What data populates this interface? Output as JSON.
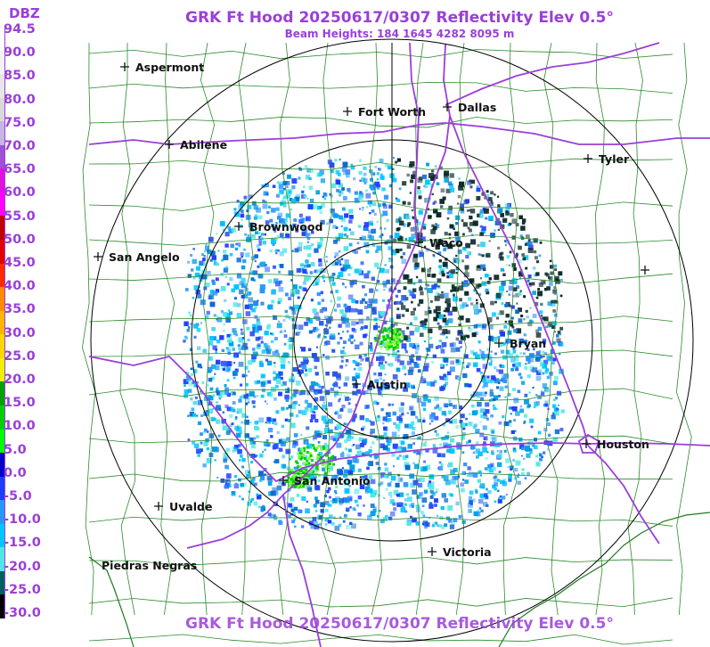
{
  "header": {
    "title": "GRK Ft Hood 20250617/0307 Reflectivity Elev 0.5°",
    "subtitle": "Beam Heights: 184 1645 4282 8095 m",
    "footer_title": "GRK Ft Hood 20250617/0307 Reflectivity Elev 0.5°"
  },
  "legend": {
    "unit": "DBZ",
    "labels": [
      "94.5",
      "90.0",
      "85.0",
      "80.0",
      "75.0",
      "70.0",
      "65.0",
      "60.0",
      "55.0",
      "50.0",
      "45.0",
      "40.0",
      "35.0",
      "30.0",
      "25.0",
      "20.0",
      "15.0",
      "10.0",
      "5.0",
      "0.0",
      "-5.0",
      "-10.0",
      "-15.0",
      "-20.0",
      "-25.0",
      "-30.0"
    ],
    "colors": [
      "#ffffff",
      "#f2f2f2",
      "#e6e6e6",
      "#d9d9d9",
      "#c8b4e6",
      "#a050d8",
      "#e010e0",
      "#ff00ff",
      "#c00000",
      "#e00000",
      "#ff2a00",
      "#ff8c00",
      "#ffb400",
      "#ffd700",
      "#f0f000",
      "#00a000",
      "#00d000",
      "#00ff00",
      "#0000c8",
      "#1e3cff",
      "#2896ff",
      "#00c8ff",
      "#50e6e6",
      "#006060",
      "#000000"
    ]
  },
  "cities": [
    {
      "name": "Aspermont"
    },
    {
      "name": "Fort Worth"
    },
    {
      "name": "Dallas"
    },
    {
      "name": "Abilene"
    },
    {
      "name": "Tyler"
    },
    {
      "name": "Brownwood"
    },
    {
      "name": "Waco"
    },
    {
      "name": "San Angelo"
    },
    {
      "name": "Bryan"
    },
    {
      "name": "Austin"
    },
    {
      "name": "Houston"
    },
    {
      "name": "San Antonio"
    },
    {
      "name": "Uvalde"
    },
    {
      "name": "Victoria"
    },
    {
      "name": "Piedras Negras"
    },
    {
      "name": ""
    }
  ]
}
